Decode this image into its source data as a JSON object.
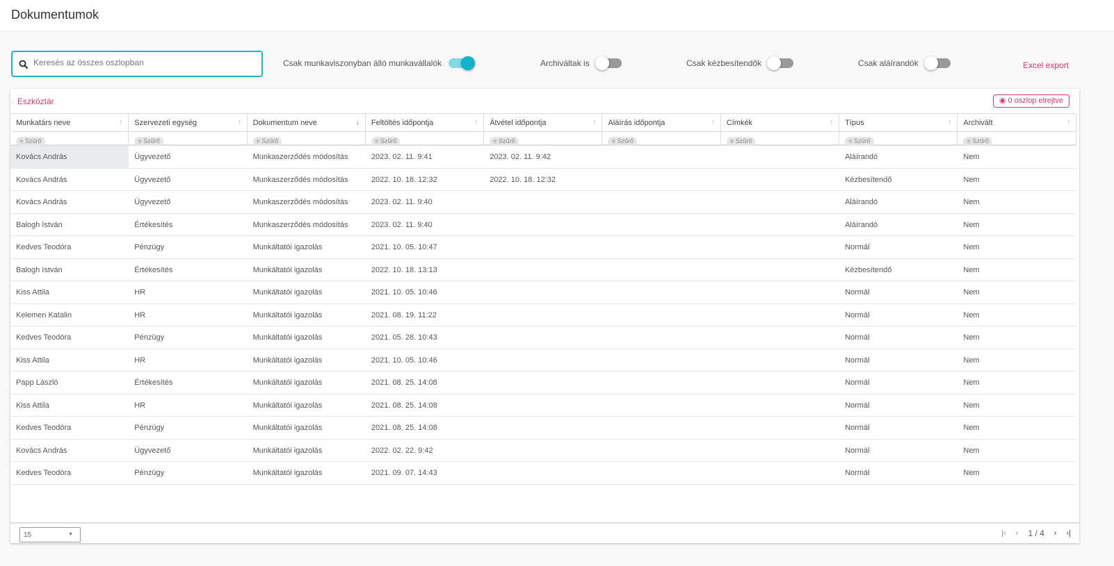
{
  "header": {
    "title": "Dokumentumok"
  },
  "search": {
    "placeholder": "Keresés az összes oszlopban",
    "value": ""
  },
  "toggles": [
    {
      "label": "Csak munkaviszonyban álló munkavállalók",
      "on": true
    },
    {
      "label": "Archiváltak is",
      "on": false
    },
    {
      "label": "Csak kézbesítendők",
      "on": false
    },
    {
      "label": "Csak aláírandók",
      "on": false
    }
  ],
  "export_label": "Excel export",
  "toolbar_label": "Eszköztár",
  "hidden_columns_label": "0 oszlop elrejtve",
  "filter_label": "Szűrő",
  "columns": [
    {
      "label": "Munkatárs neve",
      "sort": "none"
    },
    {
      "label": "Szervezeti egység",
      "sort": "none"
    },
    {
      "label": "Dokumentum neve",
      "sort": "desc"
    },
    {
      "label": "Feltöltés időpontja",
      "sort": "none"
    },
    {
      "label": "Átvétel időpontja",
      "sort": "none"
    },
    {
      "label": "Aláírás időpontja",
      "sort": "none"
    },
    {
      "label": "Címkék",
      "sort": "none"
    },
    {
      "label": "Típus",
      "sort": "none"
    },
    {
      "label": "Archivált",
      "sort": "none"
    }
  ],
  "rows": [
    [
      "Kovács András",
      "Ügyvezető",
      "Munkaszerződés módosítás",
      "2023. 02. 11. 9:41",
      "2023. 02. 11. 9:42",
      "",
      "",
      "Aláírandó",
      "Nem"
    ],
    [
      "Kovács András",
      "Ügyvezető",
      "Munkaszerződés módosítás",
      "2022. 10. 18. 12:32",
      "2022. 10. 18. 12:32",
      "",
      "",
      "Kézbesítendő",
      "Nem"
    ],
    [
      "Kovács András",
      "Ügyvezető",
      "Munkaszerződés módosítás",
      "2023. 02. 11. 9:40",
      "",
      "",
      "",
      "Aláírandó",
      "Nem"
    ],
    [
      "Balogh István",
      "Értékesítés",
      "Munkaszerződés módosítás",
      "2023. 02. 11. 9:40",
      "",
      "",
      "",
      "Aláírandó",
      "Nem"
    ],
    [
      "Kedves Teodóra",
      "Pénzügy",
      "Munkáltatói igazolás",
      "2021. 10. 05. 10:47",
      "",
      "",
      "",
      "Normál",
      "Nem"
    ],
    [
      "Balogh István",
      "Értékesítés",
      "Munkáltatói igazolás",
      "2022. 10. 18. 13:13",
      "",
      "",
      "",
      "Kézbesítendő",
      "Nem"
    ],
    [
      "Kiss Attila",
      "HR",
      "Munkáltatói igazolás",
      "2021. 10. 05. 10:46",
      "",
      "",
      "",
      "Normál",
      "Nem"
    ],
    [
      "Kelemen Katalin",
      "HR",
      "Munkáltatói igazolás",
      "2021. 08. 19. 11:22",
      "",
      "",
      "",
      "Normál",
      "Nem"
    ],
    [
      "Kedves Teodóra",
      "Pénzügy",
      "Munkáltatói igazolás",
      "2021. 05. 28. 10:43",
      "",
      "",
      "",
      "Normál",
      "Nem"
    ],
    [
      "Kiss Attila",
      "HR",
      "Munkáltatói igazolás",
      "2021. 10. 05. 10:46",
      "",
      "",
      "",
      "Normál",
      "Nem"
    ],
    [
      "Papp László",
      "Értékesítés",
      "Munkáltatói igazolás",
      "2021. 08. 25. 14:08",
      "",
      "",
      "",
      "Normál",
      "Nem"
    ],
    [
      "Kiss Attila",
      "HR",
      "Munkáltatói igazolás",
      "2021. 08. 25. 14:08",
      "",
      "",
      "",
      "Normál",
      "Nem"
    ],
    [
      "Kedves Teodóra",
      "Pénzügy",
      "Munkáltatói igazolás",
      "2021. 08. 25. 14:08",
      "",
      "",
      "",
      "Normál",
      "Nem"
    ],
    [
      "Kovács András",
      "Ügyvezető",
      "Munkáltatói igazolás",
      "2022. 02. 22. 9:42",
      "",
      "",
      "",
      "Normál",
      "Nem"
    ],
    [
      "Kedves Teodóra",
      "Pénzügy",
      "Munkáltatói igazolás",
      "2021. 09. 07. 14:43",
      "",
      "",
      "",
      "Normál",
      "Nem"
    ]
  ],
  "footer": {
    "page_size": "15",
    "page_info": "1 / 4"
  },
  "colors": {
    "accent": "#1fb5c9",
    "brand": "#d2386c"
  }
}
